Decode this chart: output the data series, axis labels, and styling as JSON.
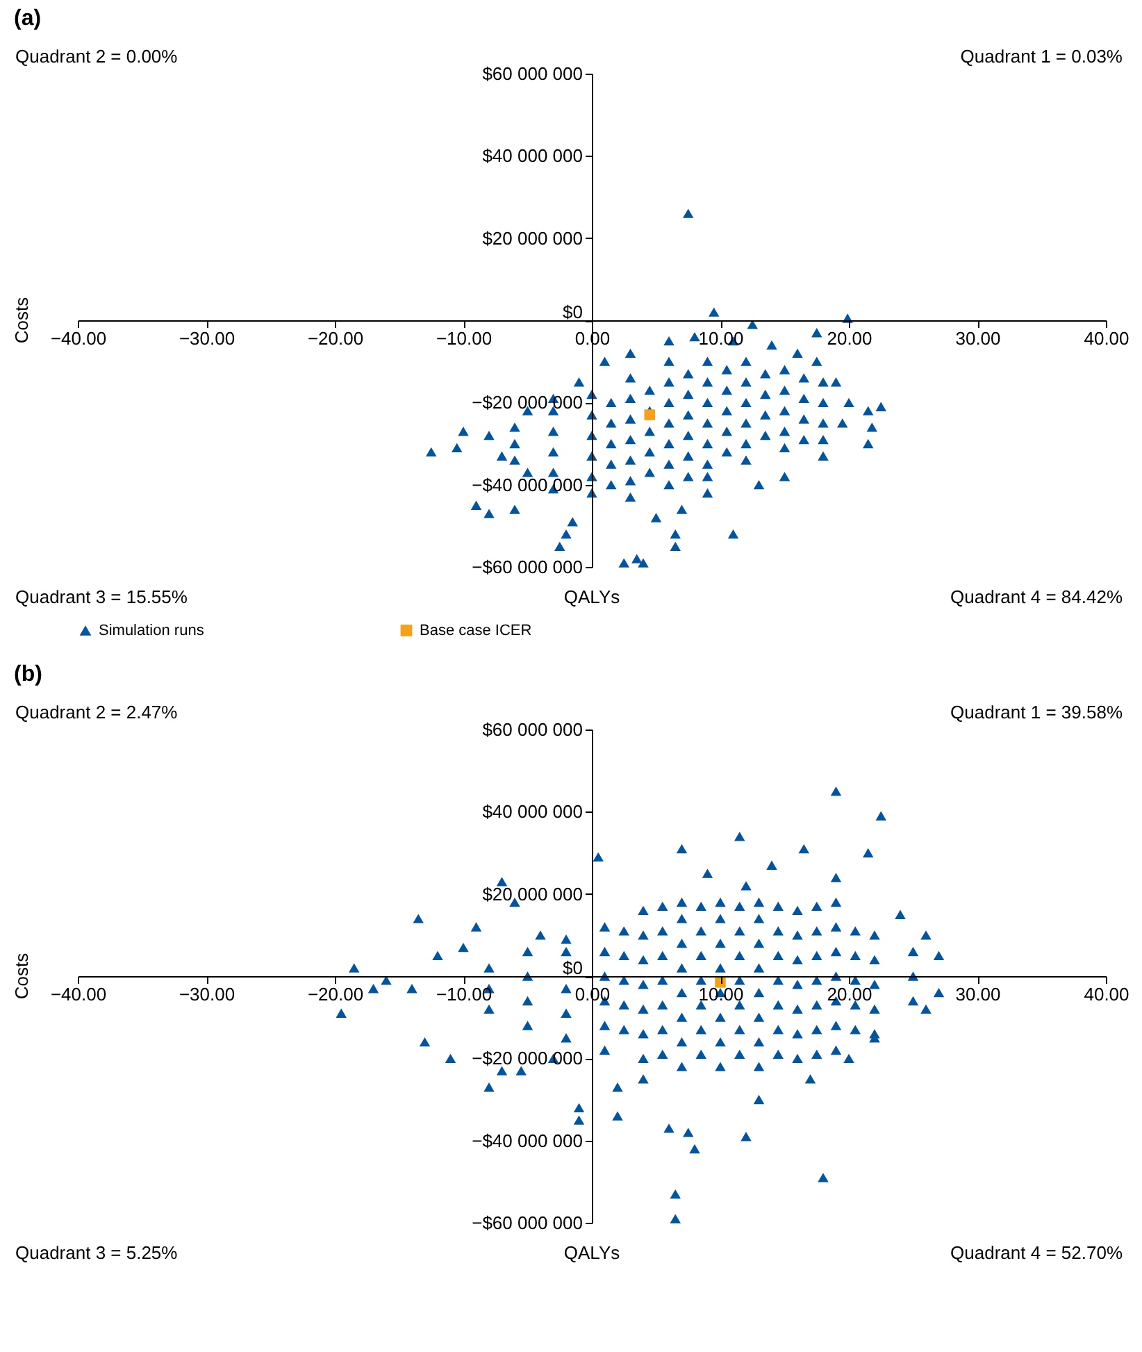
{
  "chart_data": [
    {
      "type": "scatter",
      "title": "(a)",
      "xlabel": "QALYs",
      "ylabel": "Costs",
      "annotations": [
        "Quadrant 2 = 0.00%",
        "Quadrant 1 = 0.03%",
        "Quadrant 3 = 15.55%",
        "Quadrant 4 = 84.42%"
      ],
      "xlim": [
        -40,
        40
      ],
      "ylim": [
        -60000000.0,
        60000000.0
      ],
      "xticks": [
        {
          "value": -40,
          "label": "−40.00"
        },
        {
          "value": -30,
          "label": "−30.00"
        },
        {
          "value": -20,
          "label": "−20.00"
        },
        {
          "value": -10,
          "label": "−10.00"
        },
        {
          "value": 0,
          "label": "0.00"
        },
        {
          "value": 10,
          "label": "10.00"
        },
        {
          "value": 20,
          "label": "20.00"
        },
        {
          "value": 30,
          "label": "30.00"
        },
        {
          "value": 40,
          "label": "40.00"
        }
      ],
      "yticks": [
        {
          "value": -60000000.0,
          "label": "−$60 000 000"
        },
        {
          "value": -40000000.0,
          "label": "−$40 000 000"
        },
        {
          "value": -20000000.0,
          "label": "−$20 000 000"
        },
        {
          "value": 0,
          "label": "$0"
        },
        {
          "value": 20000000.0,
          "label": "$20 000 000"
        },
        {
          "value": 40000000.0,
          "label": "$40 000 000"
        },
        {
          "value": 60000000.0,
          "label": "$60 000 000"
        }
      ],
      "grid": false,
      "legend": "bottom",
      "series": [
        {
          "name": "Simulation runs",
          "color": "#0054a0",
          "marker": "triangle",
          "x": [
            7.5,
            9.5,
            19.9,
            12.5,
            17.5,
            -12.5,
            -10,
            -8,
            -10.5,
            -7,
            -9,
            -8,
            -6,
            -5,
            -3,
            -2.5,
            -1.5,
            -2,
            2.5,
            3.5,
            4,
            6.5,
            6.5,
            11,
            5,
            7,
            9,
            13,
            15,
            18,
            22.5,
            21.5,
            21.8,
            21.5,
            19.5,
            20,
            19,
            17.5,
            16,
            14,
            11,
            6,
            8,
            3,
            1,
            -1,
            -3,
            -5,
            -6,
            -6,
            -6,
            -3,
            -3,
            -3,
            -3,
            0,
            0,
            0,
            0,
            0,
            0,
            1.5,
            1.5,
            1.5,
            1.5,
            1.5,
            3,
            3,
            3,
            3,
            3,
            3,
            3,
            4.5,
            4.5,
            4.5,
            4.5,
            4.5,
            6,
            6,
            6,
            6,
            6,
            6,
            6,
            7.5,
            7.5,
            7.5,
            7.5,
            7.5,
            7.5,
            9,
            9,
            9,
            9,
            9,
            9,
            9,
            10.5,
            10.5,
            10.5,
            10.5,
            10.5,
            12,
            12,
            12,
            12,
            12,
            12,
            13.5,
            13.5,
            13.5,
            13.5,
            15,
            15,
            15,
            15,
            15,
            16.5,
            16.5,
            16.5,
            16.5,
            18,
            18,
            18,
            18
          ],
          "values": [
            26000000.0,
            2000000.0,
            500000.0,
            -1000000.0,
            -3000000.0,
            -32000000.0,
            -27000000.0,
            -28000000.0,
            -31000000.0,
            -33000000.0,
            -45000000.0,
            -47000000.0,
            -46000000.0,
            -37000000.0,
            -41000000.0,
            -55000000.0,
            -49000000.0,
            -52000000.0,
            -59000000.0,
            -58000000.0,
            -59000000.0,
            -52000000.0,
            -55000000.0,
            -52000000.0,
            -48000000.0,
            -46000000.0,
            -42000000.0,
            -40000000.0,
            -38000000.0,
            -33000000.0,
            -21000000.0,
            -22000000.0,
            -26000000.0,
            -30000000.0,
            -25000000.0,
            -20000000.0,
            -15000000.0,
            -10000000.0,
            -8000000.0,
            -6000000.0,
            -5000000.0,
            -5000000.0,
            -4000000.0,
            -8000000.0,
            -10000000.0,
            -15000000.0,
            -19000000.0,
            -22000000.0,
            -26000000.0,
            -30000000.0,
            -34000000.0,
            -22000000.0,
            -27000000.0,
            -32000000.0,
            -37000000.0,
            -18000000.0,
            -23000000.0,
            -28000000.0,
            -33000000.0,
            -38000000.0,
            -42000000.0,
            -20000000.0,
            -25000000.0,
            -30000000.0,
            -35000000.0,
            -40000000.0,
            -14000000.0,
            -19000000.0,
            -24000000.0,
            -29000000.0,
            -34000000.0,
            -39000000.0,
            -43000000.0,
            -17000000.0,
            -22000000.0,
            -27000000.0,
            -32000000.0,
            -37000000.0,
            -10000000.0,
            -15000000.0,
            -20000000.0,
            -25000000.0,
            -30000000.0,
            -35000000.0,
            -40000000.0,
            -13000000.0,
            -18000000.0,
            -23000000.0,
            -28000000.0,
            -33000000.0,
            -38000000.0,
            -10000000.0,
            -15000000.0,
            -20000000.0,
            -25000000.0,
            -30000000.0,
            -35000000.0,
            -38000000.0,
            -12000000.0,
            -17000000.0,
            -22000000.0,
            -27000000.0,
            -32000000.0,
            -10000000.0,
            -15000000.0,
            -20000000.0,
            -25000000.0,
            -30000000.0,
            -34000000.0,
            -13000000.0,
            -18000000.0,
            -23000000.0,
            -28000000.0,
            -12000000.0,
            -17000000.0,
            -22000000.0,
            -27000000.0,
            -31000000.0,
            -14000000.0,
            -19000000.0,
            -24000000.0,
            -29000000.0,
            -15000000.0,
            -20000000.0,
            -25000000.0,
            -29000000.0
          ]
        },
        {
          "name": "Base case ICER",
          "color": "#f7a11a",
          "marker": "square",
          "x": [
            4.5
          ],
          "values": [
            -23000000.0
          ]
        }
      ]
    },
    {
      "type": "scatter",
      "title": "(b)",
      "xlabel": "QALYs",
      "ylabel": "Costs",
      "annotations": [
        "Quadrant 2 = 2.47%",
        "Quadrant 1 = 39.58%",
        "Quadrant 3 = 5.25%",
        "Quadrant 4 = 52.70%"
      ],
      "xlim": [
        -40,
        40
      ],
      "ylim": [
        -60000000.0,
        60000000.0
      ],
      "xticks": [
        {
          "value": -40,
          "label": "−40.00"
        },
        {
          "value": -30,
          "label": "−30.00"
        },
        {
          "value": -20,
          "label": "−20.00"
        },
        {
          "value": -10,
          "label": "−10.00"
        },
        {
          "value": 0,
          "label": "0.00"
        },
        {
          "value": 10,
          "label": "10.00"
        },
        {
          "value": 20,
          "label": "20.00"
        },
        {
          "value": 30,
          "label": "30.00"
        },
        {
          "value": 40,
          "label": "40.00"
        }
      ],
      "yticks": [
        {
          "value": -60000000.0,
          "label": "−$60 000 000"
        },
        {
          "value": -40000000.0,
          "label": "−$40 000 000"
        },
        {
          "value": -20000000.0,
          "label": "−$20 000 000"
        },
        {
          "value": 0,
          "label": "$0"
        },
        {
          "value": 20000000.0,
          "label": "$20 000 000"
        },
        {
          "value": 40000000.0,
          "label": "$40 000 000"
        },
        {
          "value": 60000000.0,
          "label": "$60 000 000"
        }
      ],
      "grid": false,
      "series": [
        {
          "color": "#0054a0",
          "marker": "triangle",
          "x": [
            -19.5,
            -18.5,
            -17,
            -16,
            -14,
            -13.5,
            -12,
            -7,
            -6,
            -13,
            -11,
            -7,
            -8,
            -5.5,
            -1,
            -1,
            2,
            6,
            7.5,
            8,
            12,
            18,
            6.5,
            6.5,
            0.5,
            7,
            11.5,
            16.5,
            21.5,
            22.5,
            19,
            14,
            12,
            9,
            19,
            24,
            26,
            27,
            27,
            26,
            22,
            20,
            17,
            13,
            4,
            2,
            -3,
            -4,
            -9,
            -10,
            -8,
            -8,
            -8,
            -5,
            -5,
            -5,
            -5,
            -2,
            -2,
            -2,
            -2,
            -2,
            1,
            1,
            1,
            1,
            1,
            1,
            2.5,
            2.5,
            2.5,
            2.5,
            2.5,
            4,
            4,
            4,
            4,
            4,
            4,
            4,
            5.5,
            5.5,
            5.5,
            5.5,
            5.5,
            5.5,
            5.5,
            7,
            7,
            7,
            7,
            7,
            7,
            7,
            7,
            8.5,
            8.5,
            8.5,
            8.5,
            8.5,
            8.5,
            8.5,
            10,
            10,
            10,
            10,
            10,
            10,
            10,
            10,
            11.5,
            11.5,
            11.5,
            11.5,
            11.5,
            11.5,
            11.5,
            13,
            13,
            13,
            13,
            13,
            13,
            13,
            13,
            14.5,
            14.5,
            14.5,
            14.5,
            14.5,
            14.5,
            14.5,
            16,
            16,
            16,
            16,
            16,
            16,
            16,
            17.5,
            17.5,
            17.5,
            17.5,
            17.5,
            17.5,
            17.5,
            19,
            19,
            19,
            19,
            19,
            19,
            19,
            20.5,
            20.5,
            20.5,
            20.5,
            20.5,
            22,
            22,
            22,
            22,
            22,
            25,
            25,
            25
          ],
          "values": [
            -9000000.0,
            2000000.0,
            -3000000.0,
            -1000000.0,
            -3000000.0,
            14000000.0,
            5000000.0,
            23000000.0,
            18000000.0,
            -16000000.0,
            -20000000.0,
            -23000000.0,
            -27000000.0,
            -23000000.0,
            -32000000.0,
            -35000000.0,
            -34000000.0,
            -37000000.0,
            -38000000.0,
            -42000000.0,
            -39000000.0,
            -49000000.0,
            -53000000.0,
            -59000000.0,
            29000000.0,
            31000000.0,
            34000000.0,
            31000000.0,
            30000000.0,
            39000000.0,
            45000000.0,
            27000000.0,
            22000000.0,
            25000000.0,
            24000000.0,
            15000000.0,
            10000000.0,
            5000000.0,
            -4000000.0,
            -8000000.0,
            -15000000.0,
            -20000000.0,
            -25000000.0,
            -30000000.0,
            -25000000.0,
            -27000000.0,
            -20000000.0,
            10000000.0,
            12000000.0,
            7000000.0,
            -8000000.0,
            -3000000.0,
            2000000.0,
            -12000000.0,
            -6000000.0,
            0,
            6000000.0,
            -15000000.0,
            -9000000.0,
            -3000000.0,
            6000000.0,
            9000000.0,
            -18000000.0,
            -12000000.0,
            -6000000.0,
            0,
            6000000.0,
            12000000.0,
            -13000000.0,
            -7000000.0,
            -1000000.0,
            5000000.0,
            11000000.0,
            -20000000.0,
            -14000000.0,
            -8000000.0,
            -2000000.0,
            4000000.0,
            10000000.0,
            16000000.0,
            -19000000.0,
            -13000000.0,
            -7000000.0,
            -1000000.0,
            5000000.0,
            11000000.0,
            17000000.0,
            -22000000.0,
            -16000000.0,
            -10000000.0,
            -4000000.0,
            2000000.0,
            8000000.0,
            14000000.0,
            18000000.0,
            -19000000.0,
            -13000000.0,
            -7000000.0,
            -1000000.0,
            5000000.0,
            11000000.0,
            17000000.0,
            -22000000.0,
            -16000000.0,
            -10000000.0,
            -4000000.0,
            2000000.0,
            8000000.0,
            14000000.0,
            18000000.0,
            -19000000.0,
            -13000000.0,
            -7000000.0,
            -1000000.0,
            5000000.0,
            11000000.0,
            17000000.0,
            -22000000.0,
            -16000000.0,
            -10000000.0,
            -4000000.0,
            2000000.0,
            8000000.0,
            14000000.0,
            18000000.0,
            -19000000.0,
            -13000000.0,
            -7000000.0,
            -1000000.0,
            5000000.0,
            11000000.0,
            17000000.0,
            -20000000.0,
            -14000000.0,
            -8000000.0,
            -2000000.0,
            4000000.0,
            10000000.0,
            16000000.0,
            -19000000.0,
            -13000000.0,
            -7000000.0,
            -1000000.0,
            5000000.0,
            11000000.0,
            17000000.0,
            -18000000.0,
            -12000000.0,
            -6000000.0,
            0,
            6000000.0,
            12000000.0,
            18000000.0,
            -13000000.0,
            -7000000.0,
            -1000000.0,
            5000000.0,
            11000000.0,
            -14000000.0,
            -8000000.0,
            -2000000.0,
            4000000.0,
            10000000.0,
            -6000000.0,
            0,
            6000000.0
          ]
        },
        {
          "color": "#f7a11a",
          "marker": "square",
          "x": [
            10
          ],
          "values": [
            -1500000.0
          ]
        }
      ]
    }
  ]
}
